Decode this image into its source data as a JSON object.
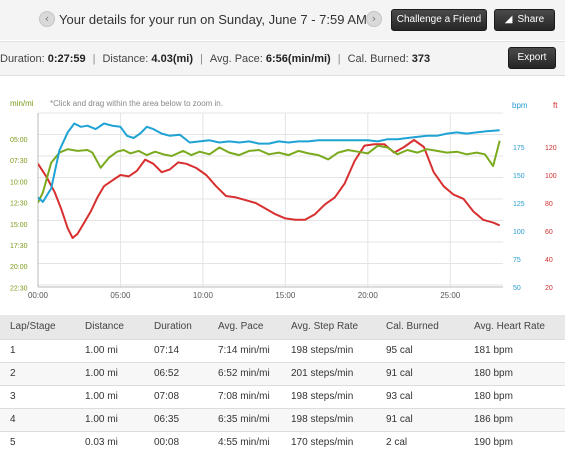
{
  "header": {
    "title": "Your details for your run on Sunday, June 7 - 7:59 AM",
    "prev_icon": "chevron-left-icon",
    "next_icon": "chevron-right-icon",
    "challenge_label": "Challenge a Friend",
    "share_label": "Share",
    "share_icon": "megaphone-icon"
  },
  "summary": {
    "duration_label": "Duration: ",
    "duration_value": "0:27:59",
    "distance_label": "Distance: ",
    "distance_value": "4.03(mi)",
    "pace_label": "Avg. Pace: ",
    "pace_value": "6:56(min/mi)",
    "cal_label": "Cal. Burned: ",
    "cal_value": "373",
    "separator": "|",
    "export_label": "Export"
  },
  "chart_data": {
    "type": "line",
    "hint": "*Click and drag within the area below to zoom in.",
    "x_ticks": [
      "00:00",
      "05:00",
      "10:00",
      "15:00",
      "20:00",
      "25:00"
    ],
    "left_axis": {
      "label": "min/mi",
      "ticks": [
        "05:00",
        "07:30",
        "10:00",
        "12:30",
        "15:00",
        "17:30",
        "20:00",
        "22:30"
      ],
      "color": "#7a9a1a"
    },
    "right_axis_1": {
      "label": "bpm",
      "ticks": [
        "175",
        "150",
        "125",
        "100",
        "75",
        "50"
      ],
      "color": "#2a9fd0"
    },
    "right_axis_2": {
      "label": "ft",
      "ticks": [
        "120",
        "100",
        "80",
        "60",
        "40",
        "20"
      ],
      "color": "#d03030"
    },
    "colors": {
      "pace": "#7aaa1e",
      "heart_rate": "#1fa2d4",
      "elevation": "#d83030"
    },
    "series": [
      {
        "name": "min/mi",
        "x": [
          0,
          0.3,
          0.8,
          1.3,
          1.8,
          2.4,
          3.0,
          3.3,
          3.8,
          4.3,
          4.8,
          5.2,
          5.6,
          6.1,
          6.6,
          7.1,
          7.6,
          8.1,
          8.8,
          9.3,
          9.8,
          10.4,
          11.0,
          11.6,
          12.2,
          12.8,
          13.4,
          14.0,
          14.6,
          15.2,
          15.8,
          16.4,
          17.0,
          17.6,
          18.2,
          18.8,
          19.4,
          20.0,
          20.6,
          21.2,
          21.8,
          22.4,
          23.0,
          23.6,
          24.2,
          24.8,
          25.4,
          26.0,
          26.6,
          27.1,
          27.6,
          28.0
        ],
        "values": [
          12.5,
          11.3,
          7.8,
          6.6,
          6.2,
          6.4,
          6.3,
          6.6,
          8.4,
          7.2,
          6.5,
          6.3,
          6.7,
          6.4,
          6.9,
          6.5,
          6.8,
          7.0,
          6.4,
          6.9,
          6.5,
          6.8,
          6.0,
          6.6,
          6.9,
          6.4,
          6.3,
          6.8,
          6.6,
          6.9,
          6.4,
          6.7,
          6.9,
          7.4,
          6.6,
          6.3,
          6.5,
          6.7,
          5.8,
          6.0,
          6.8,
          6.3,
          6.6,
          6.2,
          6.4,
          6.6,
          6.5,
          6.8,
          6.6,
          6.8,
          8.2,
          5.2
        ]
      },
      {
        "name": "bpm",
        "x": [
          0,
          0.3,
          0.8,
          1.3,
          1.8,
          2.2,
          2.6,
          3.0,
          3.5,
          4.0,
          4.5,
          5.0,
          5.4,
          5.8,
          6.2,
          6.6,
          7.0,
          7.5,
          8.0,
          8.6,
          9.2,
          9.8,
          10.4,
          11.0,
          11.6,
          12.2,
          12.8,
          13.4,
          14.0,
          14.6,
          15.2,
          15.8,
          16.4,
          17.0,
          17.6,
          18.2,
          18.8,
          19.4,
          20.0,
          20.6,
          21.2,
          21.8,
          22.4,
          23.0,
          23.6,
          24.2,
          24.8,
          25.4,
          26.0,
          26.6,
          27.2,
          28.0
        ],
        "values": [
          130,
          126,
          138,
          172,
          188,
          196,
          193,
          194,
          191,
          196,
          194,
          193,
          185,
          183,
          187,
          193,
          191,
          187,
          185,
          186,
          179,
          180,
          181,
          179,
          180,
          179,
          180,
          178,
          178,
          180,
          179,
          180,
          180,
          181,
          181,
          181,
          181,
          181,
          181,
          180,
          182,
          182,
          183,
          184,
          185,
          185,
          187,
          188,
          187,
          188,
          189,
          190
        ]
      },
      {
        "name": "ft",
        "x": [
          0,
          0.5,
          1.0,
          1.4,
          1.8,
          2.1,
          2.4,
          2.8,
          3.2,
          3.6,
          4.0,
          4.5,
          5.0,
          5.5,
          6.0,
          6.5,
          7.0,
          7.5,
          8.0,
          8.5,
          9.0,
          9.6,
          10.2,
          10.8,
          11.4,
          12.0,
          12.6,
          13.2,
          13.8,
          14.4,
          15.0,
          15.6,
          16.2,
          16.8,
          17.4,
          18.0,
          18.6,
          19.2,
          19.8,
          20.4,
          21.0,
          21.6,
          22.2,
          22.8,
          23.4,
          24.0,
          24.6,
          25.2,
          25.8,
          26.4,
          27.0,
          27.6,
          28.0
        ],
        "values": [
          108,
          99,
          88,
          76,
          62,
          55,
          58,
          66,
          74,
          84,
          92,
          96,
          100,
          99,
          103,
          111,
          108,
          102,
          104,
          109,
          108,
          105,
          100,
          92,
          85,
          84,
          82,
          80,
          76,
          72,
          69,
          68,
          68,
          72,
          79,
          84,
          94,
          110,
          121,
          122,
          122,
          116,
          120,
          125,
          120,
          102,
          92,
          86,
          83,
          74,
          68,
          66,
          64
        ]
      }
    ]
  },
  "table": {
    "headers": [
      "Lap/Stage",
      "Distance",
      "Duration",
      "Avg. Pace",
      "Avg. Step Rate",
      "Cal. Burned",
      "Avg. Heart Rate"
    ],
    "rows": [
      [
        "1",
        "1.00 mi",
        "07:14",
        "7:14 min/mi",
        "198 steps/min",
        "95 cal",
        "181 bpm"
      ],
      [
        "2",
        "1.00 mi",
        "06:52",
        "6:52 min/mi",
        "201 steps/min",
        "91 cal",
        "180 bpm"
      ],
      [
        "3",
        "1.00 mi",
        "07:08",
        "7:08 min/mi",
        "198 steps/min",
        "93 cal",
        "180 bpm"
      ],
      [
        "4",
        "1.00 mi",
        "06:35",
        "6:35 min/mi",
        "198 steps/min",
        "91 cal",
        "186 bpm"
      ],
      [
        "5",
        "0.03 mi",
        "00:08",
        "4:55 min/mi",
        "170 steps/min",
        "2 cal",
        "190 bpm"
      ]
    ]
  }
}
